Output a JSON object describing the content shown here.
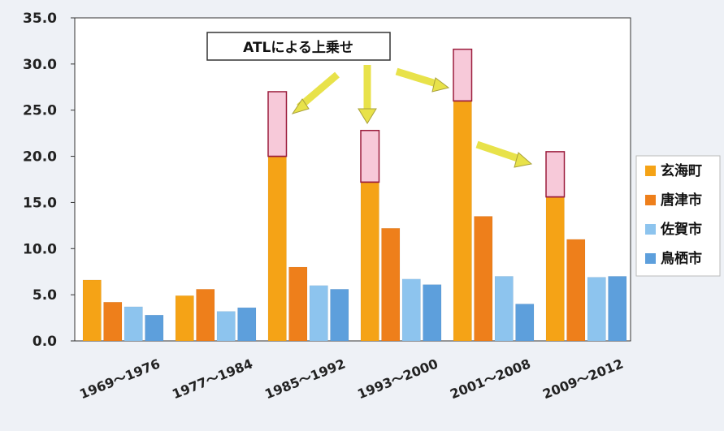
{
  "chart_data": {
    "type": "bar",
    "stacked_overlay": true,
    "categories": [
      "1969～1976",
      "1977～1984",
      "1985～1992",
      "1993～2000",
      "2001～2008",
      "2009～2012"
    ],
    "ylim": [
      0,
      35
    ],
    "yticks": [
      "0.0",
      "5.0",
      "10.0",
      "15.0",
      "20.0",
      "25.0",
      "30.0",
      "35.0"
    ],
    "grid": false,
    "legend_position": "right",
    "annotation": "ATLによる上乗せ",
    "series": [
      {
        "name": "玄海町",
        "values": [
          6.6,
          4.9,
          20.0,
          17.2,
          26.0,
          15.6
        ],
        "color": "#f5a316",
        "atl_addition": [
          0,
          0,
          7.0,
          5.6,
          5.6,
          4.9
        ],
        "atl_color": "#f7c9d9"
      },
      {
        "name": "唐津市",
        "values": [
          4.2,
          5.6,
          8.0,
          12.2,
          13.5,
          11.0
        ],
        "color": "#ee7f1b"
      },
      {
        "name": "佐賀市",
        "values": [
          3.7,
          3.2,
          6.0,
          6.7,
          7.0,
          6.9
        ],
        "color": "#8dc4ee"
      },
      {
        "name": "鳥栖市",
        "values": [
          2.8,
          3.6,
          5.6,
          6.1,
          4.0,
          7.0
        ],
        "color": "#5d9fdc"
      }
    ]
  }
}
